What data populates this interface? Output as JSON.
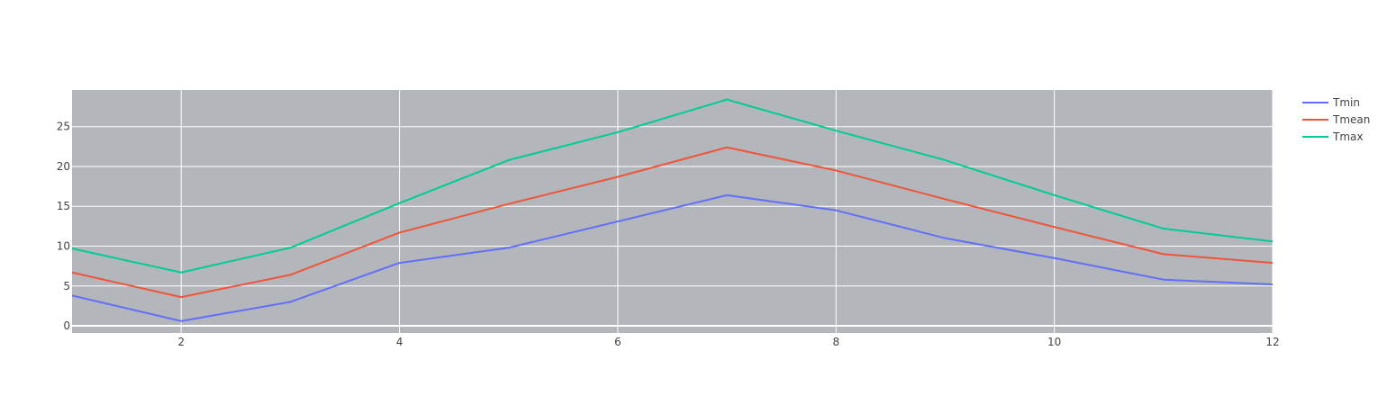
{
  "chart_data": {
    "type": "line",
    "title": "",
    "xlabel": "",
    "ylabel": "",
    "x": [
      1,
      2,
      3,
      4,
      5,
      6,
      7,
      8,
      9,
      10,
      11,
      12
    ],
    "xlim": [
      1,
      12
    ],
    "ylim": [
      -0.9,
      29.6
    ],
    "xticks": [
      2,
      4,
      6,
      8,
      10,
      12
    ],
    "yticks": [
      0,
      5,
      10,
      15,
      20,
      25
    ],
    "grid": true,
    "legend_position": "top-right",
    "plot_background": "#b3b6ba",
    "series": [
      {
        "name": "Tmin",
        "color": "#636efa",
        "values": [
          3.8,
          0.6,
          3.0,
          7.9,
          9.8,
          13.1,
          16.4,
          14.5,
          11.0,
          8.5,
          5.8,
          5.2
        ]
      },
      {
        "name": "Tmean",
        "color": "#ef553b",
        "values": [
          6.7,
          3.6,
          6.4,
          11.7,
          15.3,
          18.7,
          22.4,
          19.5,
          15.9,
          12.4,
          9.0,
          7.9
        ]
      },
      {
        "name": "Tmax",
        "color": "#00cc96",
        "values": [
          9.7,
          6.7,
          9.8,
          15.4,
          20.8,
          24.3,
          28.4,
          24.5,
          20.8,
          16.4,
          12.2,
          10.6
        ]
      }
    ]
  }
}
